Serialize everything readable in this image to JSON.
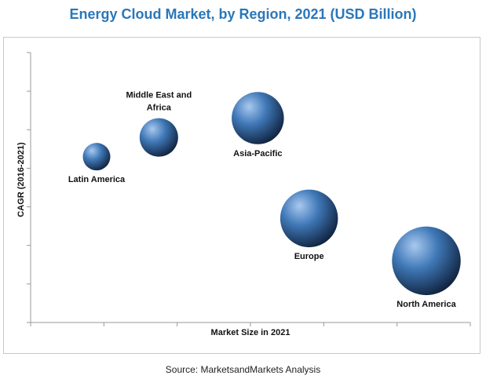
{
  "title": "Energy Cloud Market, by Region, 2021 (USD Billion)",
  "source": "Source: MarketsandMarkets Analysis",
  "colors": {
    "title": "#2a77b9",
    "bubble_light": "#a9c9ef",
    "bubble_mid": "#3f78b7",
    "bubble_dark": "#10233f"
  },
  "chart_data": {
    "type": "scatter",
    "title": "Energy Cloud Market, by Region, 2021 (USD Billion)",
    "xlabel": "Market Size in 2021",
    "ylabel": "CAGR (2016-2021)",
    "xlim": [
      0,
      6
    ],
    "ylim": [
      0,
      7
    ],
    "x_ticks": 6,
    "y_ticks": 7,
    "grid": false,
    "tick_labels_shown": false,
    "series": [
      {
        "points": [
          {
            "label": "Latin America",
            "label_lines": [
              "Latin America"
            ],
            "x": 0.9,
            "y": 4.3,
            "size": 1.0,
            "label_pos": "below"
          },
          {
            "label": "Middle East and Africa",
            "label_lines": [
              "Middle East and",
              "Africa"
            ],
            "x": 1.75,
            "y": 4.8,
            "size": 1.4,
            "label_pos": "above"
          },
          {
            "label": "Asia-Pacific",
            "label_lines": [
              "Asia-Pacific"
            ],
            "x": 3.1,
            "y": 5.3,
            "size": 1.9,
            "label_pos": "below"
          },
          {
            "label": "Europe",
            "label_lines": [
              "Europe"
            ],
            "x": 3.8,
            "y": 2.7,
            "size": 2.1,
            "label_pos": "below"
          },
          {
            "label": "North America",
            "label_lines": [
              "North America"
            ],
            "x": 5.4,
            "y": 1.6,
            "size": 2.5,
            "label_pos": "below"
          }
        ]
      }
    ]
  }
}
